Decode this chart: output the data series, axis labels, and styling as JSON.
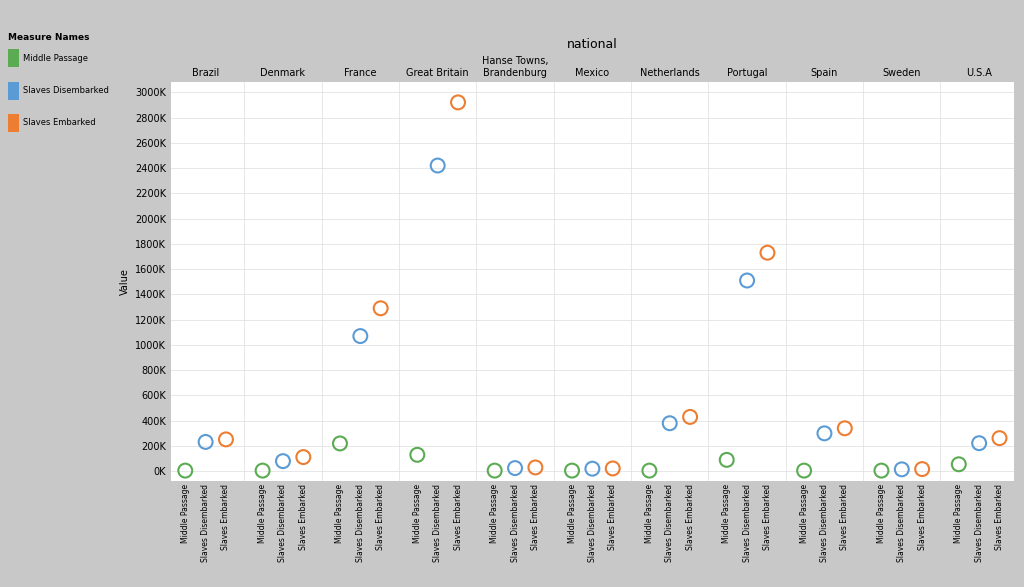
{
  "title": "national",
  "ylabel": "Value",
  "yticks": [
    0,
    200000,
    400000,
    600000,
    800000,
    1000000,
    1200000,
    1400000,
    1600000,
    1800000,
    2000000,
    2200000,
    2400000,
    2600000,
    2800000,
    3000000
  ],
  "ytick_labels": [
    "0K",
    "200K",
    "400K",
    "600K",
    "800K",
    "1000K",
    "1200K",
    "1400K",
    "1600K",
    "1800K",
    "2000K",
    "2200K",
    "2400K",
    "2600K",
    "2800K",
    "3000K"
  ],
  "countries": [
    "Brazil",
    "Denmark",
    "France",
    "Great Britain",
    "Hanse Towns,\nBrandenburg",
    "Mexico",
    "Netherlands",
    "Portugal",
    "Spain",
    "Sweden",
    "U.S.A"
  ],
  "measures": [
    "Middle Passage",
    "Slaves Disembarked",
    "Slaves Embarked"
  ],
  "colors": {
    "Middle Passage": "#5aab52",
    "Slaves Disembarked": "#5b9bd5",
    "Slaves Embarked": "#ed7d31"
  },
  "data": {
    "Brazil": {
      "Middle Passage": 5000,
      "Slaves Disembarked": 232000,
      "Slaves Embarked": 252000
    },
    "Denmark": {
      "Middle Passage": 5000,
      "Slaves Disembarked": 80000,
      "Slaves Embarked": 112000
    },
    "France": {
      "Middle Passage": 220000,
      "Slaves Disembarked": 1070000,
      "Slaves Embarked": 1290000
    },
    "Great Britain": {
      "Middle Passage": 130000,
      "Slaves Disembarked": 2420000,
      "Slaves Embarked": 2920000
    },
    "Hanse Towns,\nBrandenburg": {
      "Middle Passage": 5000,
      "Slaves Disembarked": 25000,
      "Slaves Embarked": 30000
    },
    "Mexico": {
      "Middle Passage": 5000,
      "Slaves Disembarked": 20000,
      "Slaves Embarked": 22000
    },
    "Netherlands": {
      "Middle Passage": 5000,
      "Slaves Disembarked": 380000,
      "Slaves Embarked": 430000
    },
    "Portugal": {
      "Middle Passage": 90000,
      "Slaves Disembarked": 1510000,
      "Slaves Embarked": 1730000
    },
    "Spain": {
      "Middle Passage": 5000,
      "Slaves Disembarked": 300000,
      "Slaves Embarked": 340000
    },
    "Sweden": {
      "Middle Passage": 5000,
      "Slaves Disembarked": 15000,
      "Slaves Embarked": 17000
    },
    "U.S.A": {
      "Middle Passage": 55000,
      "Slaves Disembarked": 222000,
      "Slaves Embarked": 262000
    }
  },
  "sidebar_color": "#c8c8c8",
  "plot_bg_color": "#ffffff",
  "legend_bg": "#ffffff",
  "marker_size": 100,
  "linewidth": 1.5,
  "title_fontsize": 9,
  "tick_fontsize": 7,
  "xtick_fontsize": 5.5,
  "ylabel_fontsize": 7
}
